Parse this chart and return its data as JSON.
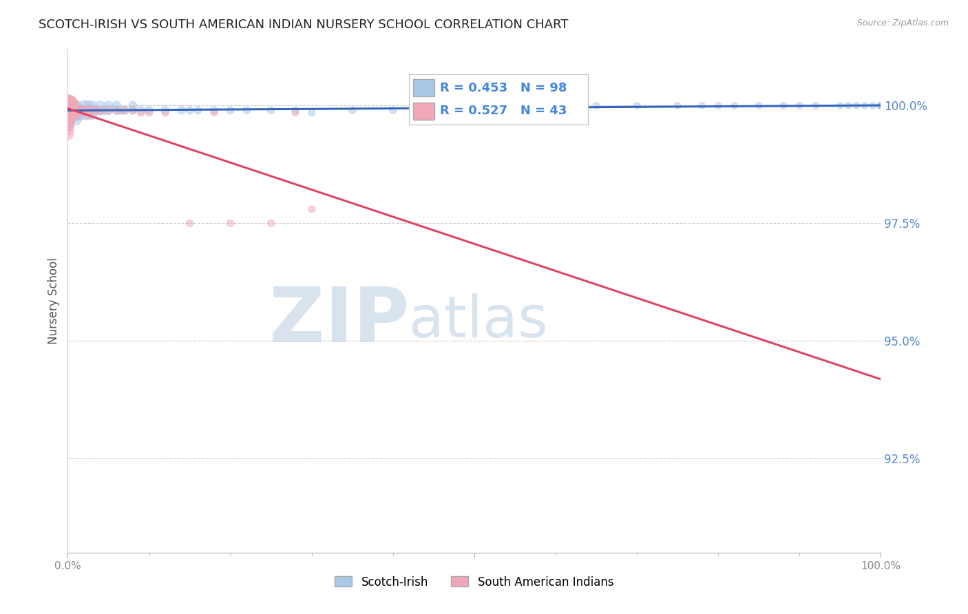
{
  "title": "SCOTCH-IRISH VS SOUTH AMERICAN INDIAN NURSERY SCHOOL CORRELATION CHART",
  "source": "Source: ZipAtlas.com",
  "ylabel": "Nursery School",
  "blue_R": 0.453,
  "blue_N": 98,
  "pink_R": 0.527,
  "pink_N": 43,
  "blue_label": "Scotch-Irish",
  "pink_label": "South American Indians",
  "blue_color": "#a8c8e8",
  "pink_color": "#f0a8b8",
  "blue_line_color": "#3366bb",
  "pink_line_color": "#dd4466",
  "ytick_color": "#5588cc",
  "xtick_color": "#888888",
  "legend_text_color": "#4488dd",
  "watermark_zip_color": "#c8d8e8",
  "watermark_atlas_color": "#b8cce0",
  "background_color": "#ffffff",
  "grid_color": "#cccccc",
  "xlim": [
    0.0,
    1.0
  ],
  "ylim": [
    0.905,
    1.012
  ],
  "yticks": [
    0.925,
    0.95,
    0.975,
    1.0
  ],
  "ytick_labels": [
    "92.5%",
    "95.0%",
    "97.5%",
    "100.0%"
  ],
  "blue_x": [
    0.0,
    0.0,
    0.0,
    0.0,
    0.0,
    0.0,
    0.0,
    0.0,
    0.0,
    0.0,
    0.0,
    0.0,
    0.0,
    0.0,
    0.0,
    0.005,
    0.005,
    0.008,
    0.01,
    0.01,
    0.01,
    0.01,
    0.012,
    0.015,
    0.018,
    0.02,
    0.02,
    0.022,
    0.025,
    0.025,
    0.03,
    0.03,
    0.03,
    0.035,
    0.04,
    0.04,
    0.045,
    0.05,
    0.05,
    0.06,
    0.06,
    0.065,
    0.07,
    0.08,
    0.08,
    0.09,
    0.1,
    0.12,
    0.14,
    0.15,
    0.16,
    0.18,
    0.2,
    0.22,
    0.25,
    0.28,
    0.3,
    0.35,
    0.4,
    0.45,
    0.5,
    0.55,
    0.6,
    0.65,
    0.7,
    0.75,
    0.78,
    0.8,
    0.82,
    0.85,
    0.88,
    0.9,
    0.92,
    0.95,
    0.96,
    0.97,
    0.98,
    0.99,
    1.0,
    1.0,
    1.0,
    1.0,
    1.0,
    1.0,
    1.0,
    1.0,
    1.0,
    1.0,
    1.0,
    1.0,
    1.0,
    1.0,
    1.0,
    1.0,
    1.0,
    1.0,
    1.0,
    1.0
  ],
  "blue_y": [
    1.0,
    1.0,
    1.0,
    1.0,
    1.0,
    1.0,
    1.0,
    1.0,
    0.999,
    0.999,
    0.998,
    0.998,
    0.997,
    0.997,
    0.996,
    1.0,
    0.999,
    0.998,
    1.0,
    0.999,
    0.998,
    0.997,
    0.999,
    0.998,
    0.999,
    1.0,
    0.999,
    0.998,
    1.0,
    0.999,
    1.0,
    0.999,
    0.998,
    0.999,
    1.0,
    0.999,
    0.999,
    1.0,
    0.999,
    1.0,
    0.999,
    0.999,
    0.999,
    1.0,
    0.999,
    0.999,
    0.999,
    0.999,
    0.999,
    0.999,
    0.999,
    0.999,
    0.999,
    0.999,
    0.999,
    0.999,
    0.9985,
    0.999,
    0.999,
    0.999,
    1.0,
    1.0,
    1.0,
    1.0,
    1.0,
    1.0,
    1.0,
    1.0,
    1.0,
    1.0,
    1.0,
    1.0,
    1.0,
    1.0,
    1.0,
    1.0,
    1.0,
    1.0,
    1.0,
    1.0,
    1.0,
    1.0,
    1.0,
    1.0,
    1.0,
    1.0,
    1.0,
    1.0,
    1.0,
    1.0,
    1.0,
    1.0,
    1.0,
    1.0,
    1.0,
    1.0,
    1.0,
    1.0
  ],
  "pink_x": [
    0.0,
    0.0,
    0.0,
    0.0,
    0.0,
    0.0,
    0.0,
    0.0,
    0.0,
    0.0,
    0.0,
    0.0,
    0.0,
    0.0,
    0.0,
    0.0,
    0.0,
    0.005,
    0.008,
    0.01,
    0.01,
    0.012,
    0.015,
    0.018,
    0.02,
    0.025,
    0.025,
    0.03,
    0.035,
    0.04,
    0.05,
    0.06,
    0.07,
    0.08,
    0.09,
    0.1,
    0.12,
    0.15,
    0.18,
    0.2,
    0.25,
    0.28,
    0.3
  ],
  "pink_y": [
    1.0,
    1.0,
    1.0,
    1.0,
    1.0,
    1.0,
    1.0,
    0.999,
    0.999,
    0.999,
    0.998,
    0.998,
    0.997,
    0.997,
    0.996,
    0.995,
    0.994,
    0.999,
    0.999,
    0.999,
    0.998,
    0.999,
    0.999,
    0.999,
    0.999,
    0.999,
    0.998,
    0.999,
    0.999,
    0.999,
    0.999,
    0.999,
    0.999,
    0.999,
    0.9985,
    0.9985,
    0.9985,
    0.975,
    0.9985,
    0.975,
    0.975,
    0.9985,
    0.978
  ],
  "blue_circle_sizes": [
    400,
    400,
    350,
    350,
    300,
    300,
    280,
    280,
    260,
    250,
    230,
    220,
    200,
    180,
    160,
    150,
    140,
    140,
    130,
    130,
    130,
    120,
    120,
    120,
    110,
    110,
    110,
    100,
    100,
    100,
    95,
    95,
    90,
    90,
    90,
    85,
    85,
    85,
    80,
    80,
    75,
    75,
    75,
    70,
    70,
    70,
    65,
    65,
    65,
    60,
    60,
    60,
    55,
    55,
    55,
    50,
    50,
    50,
    50,
    45,
    45,
    45,
    45,
    45,
    45,
    45,
    45,
    45,
    45,
    45,
    45,
    45,
    45,
    45,
    45,
    45,
    45,
    45,
    45,
    45,
    45,
    45,
    45,
    45,
    45,
    45,
    45,
    45,
    45,
    45,
    45,
    45,
    45,
    45,
    45,
    45,
    45,
    45
  ],
  "pink_circle_sizes": [
    500,
    480,
    450,
    420,
    400,
    380,
    360,
    340,
    320,
    300,
    280,
    260,
    240,
    200,
    180,
    160,
    140,
    130,
    120,
    110,
    100,
    100,
    95,
    90,
    85,
    80,
    80,
    75,
    75,
    70,
    65,
    65,
    60,
    60,
    55,
    55,
    55,
    50,
    50,
    50,
    50,
    50,
    50
  ]
}
